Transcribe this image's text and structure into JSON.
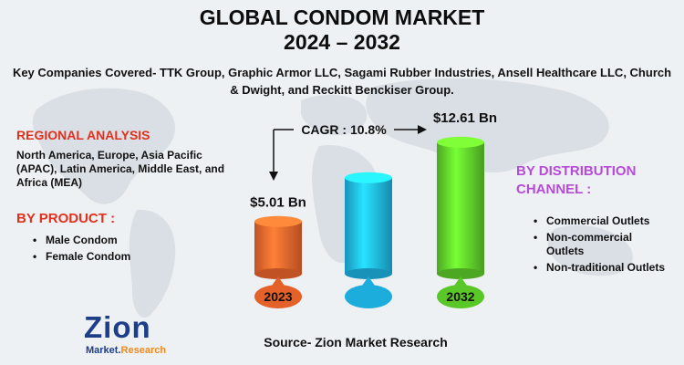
{
  "header": {
    "title_line1": "GLOBAL CONDOM MARKET",
    "title_line2": "2024 – 2032",
    "key_companies": "Key Companies Covered- TTK Group, Graphic Armor LLC, Sagami Rubber Industries, Ansell Healthcare LLC, Church & Dwight, and Reckitt Benckiser Group."
  },
  "regional": {
    "heading": "REGIONAL ANALYSIS",
    "text": "North America, Europe, Asia Pacific (APAC), Latin America, Middle East, and Africa (MEA)"
  },
  "by_product": {
    "heading": "BY PRODUCT :",
    "items": [
      "Male Condom",
      "Female Condom"
    ]
  },
  "distribution": {
    "heading": "BY DISTRIBUTION CHANNEL :",
    "items": [
      "Commercial Outlets",
      "Non-commercial Outlets",
      "Non-traditional Outlets"
    ]
  },
  "source": "Source- Zion Market Research",
  "logo": {
    "name": "Zion",
    "tagline_a": "Market.",
    "tagline_b": "Research"
  },
  "colors": {
    "title_red": "#e1311c",
    "dist_purple": "#b64bd8",
    "bar_2023": "#f0662c",
    "bar_mid": "#1fb6e8",
    "bar_2032": "#5fd12a"
  },
  "chart_data": {
    "type": "bar",
    "categories": [
      "2023",
      "",
      "2032"
    ],
    "values": [
      5.01,
      null,
      12.61
    ],
    "value_labels": [
      "$5.01 Bn",
      "",
      "$12.61 Bn"
    ],
    "cagr_label": "CAGR : 10.8%",
    "ylim": [
      0,
      14
    ]
  }
}
